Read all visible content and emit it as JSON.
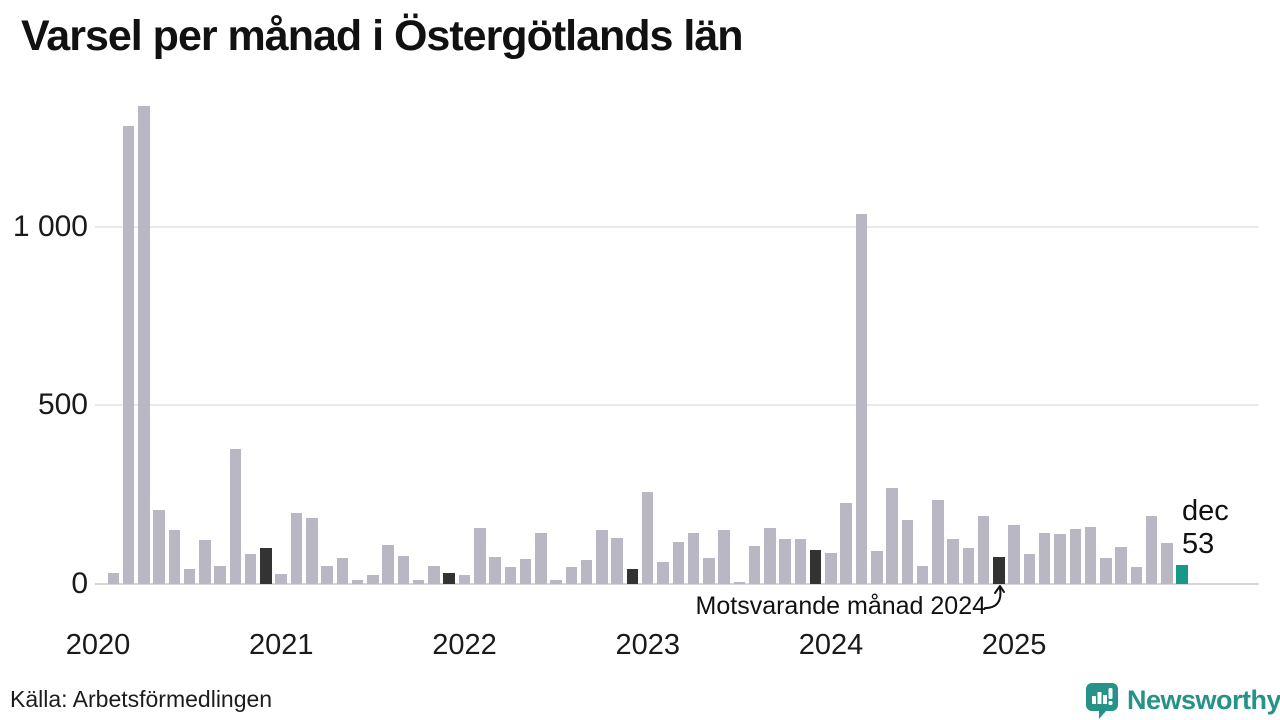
{
  "title": "Varsel per månad i Östergötlands län",
  "source": "Källa: Arbetsförmedlingen",
  "brand": {
    "name": "Newsworthy",
    "icon": "newsworthy-chart-speech-bubble-icon"
  },
  "annotation": {
    "text": "Motsvarande månad 2024",
    "target": "december 2024 bar"
  },
  "current_label": {
    "month": "dec",
    "value": "53"
  },
  "colors": {
    "bar": "#bab7c4",
    "bar_december": "#333333",
    "bar_current": "#17998a",
    "brand_teal": "#259387",
    "gridline": "#e9e9ee",
    "axis_line": "#d5d5dc",
    "text": "#111111"
  },
  "chart_data": {
    "type": "bar",
    "title": "Varsel per månad i Östergötlands län",
    "xlabel": "",
    "ylabel": "",
    "x_start": "jan 2020",
    "x_end": "dec 2025",
    "months_per_year": 12,
    "x_tick_labels": [
      "2020",
      "2021",
      "2022",
      "2023",
      "2024",
      "2025"
    ],
    "y_ticks": [
      0,
      500,
      1000
    ],
    "y_tick_labels": [
      "0",
      "500",
      "1 000"
    ],
    "ylim": [
      0,
      1400
    ],
    "grid": "horizontal",
    "legend_position": "none",
    "values": [
      0,
      32,
      1282,
      1337,
      208,
      152,
      42,
      124,
      50,
      378,
      84,
      101,
      29,
      199,
      186,
      51,
      74,
      12,
      25,
      110,
      79,
      12,
      49,
      32,
      24,
      158,
      76,
      48,
      70,
      144,
      12,
      48,
      67,
      152,
      129,
      43,
      258,
      62,
      118,
      143,
      74,
      152,
      5,
      107,
      158,
      127,
      127,
      96,
      88,
      227,
      1036,
      93,
      269,
      180,
      49,
      235,
      126,
      101,
      191,
      76,
      166,
      85,
      143,
      141,
      154,
      160,
      73,
      104,
      48,
      189,
      115,
      53
    ],
    "december_indices": [
      11,
      23,
      35,
      47,
      59
    ],
    "current_index": 71,
    "current_value_label": "dec 53"
  }
}
